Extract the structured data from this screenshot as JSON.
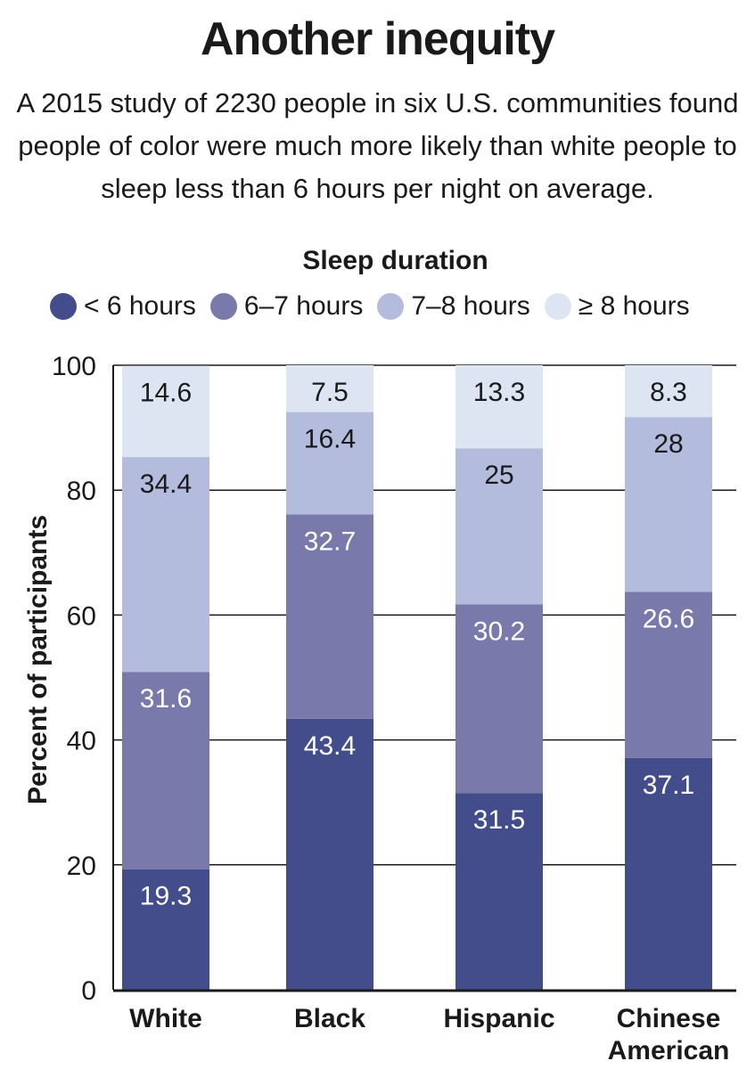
{
  "title": "Another inequity",
  "subtitle": "A 2015 study of 2230 people in six U.S. communities found people of color were much more likely than white people to sleep less than 6 hours per night on average.",
  "chart_data": {
    "type": "bar",
    "stacked": true,
    "legend_title": "Sleep duration",
    "legend_position": "top",
    "categories": [
      "White",
      "Black",
      "Hispanic",
      "Chinese American"
    ],
    "series": [
      {
        "name": "< 6 hours",
        "color": "#434d8b",
        "values": [
          19.3,
          43.4,
          31.5,
          37.1
        ]
      },
      {
        "name": "6–7 hours",
        "color": "#7a79ab",
        "values": [
          31.6,
          32.7,
          30.2,
          26.6
        ]
      },
      {
        "name": "7–8 hours",
        "color": "#b3bcdd",
        "values": [
          34.4,
          16.4,
          25,
          28
        ]
      },
      {
        "name": "≥ 8 hours",
        "color": "#dee5f2",
        "values": [
          14.6,
          7.5,
          13.3,
          8.3
        ]
      }
    ],
    "xlabel": "",
    "ylabel": "Percent of participants",
    "ylim": [
      0,
      100
    ],
    "yticks": [
      0,
      20,
      40,
      60,
      80,
      100
    ],
    "grid": true
  }
}
